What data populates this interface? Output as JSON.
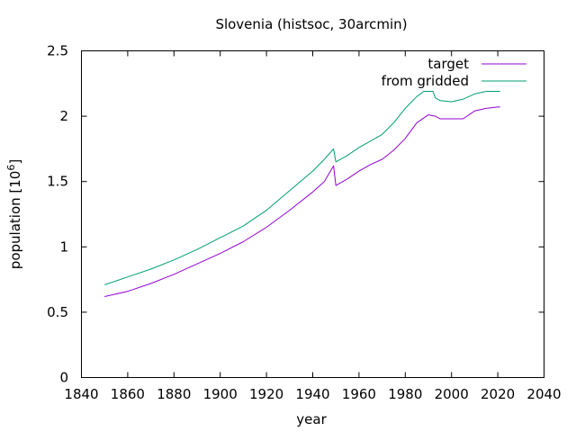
{
  "chart_data": {
    "type": "line",
    "title": "Slovenia (histsoc, 30arcmin)",
    "xlabel": "year",
    "ylabel": "population [10",
    "ylabel_sup": "6",
    "ylabel_end": "]",
    "xlim": [
      1840,
      2040
    ],
    "ylim": [
      0,
      2.5
    ],
    "xticks": [
      1840,
      1860,
      1880,
      1900,
      1920,
      1940,
      1960,
      1980,
      2000,
      2020,
      2040
    ],
    "xtick_labels": [
      "1840",
      "1860",
      "1880",
      "1900",
      "1920",
      "1940",
      "1960",
      "1980",
      "2000",
      "2020",
      "2040"
    ],
    "yticks": [
      0,
      0.5,
      1,
      1.5,
      2,
      2.5
    ],
    "ytick_labels": [
      "0",
      "0.5",
      "1",
      "1.5",
      "2",
      "2.5"
    ],
    "legend_position": "top-right",
    "series": [
      {
        "name": "target",
        "color": "#9400d3",
        "x": [
          1850,
          1860,
          1870,
          1880,
          1890,
          1900,
          1910,
          1920,
          1930,
          1940,
          1945,
          1949,
          1950,
          1955,
          1960,
          1965,
          1970,
          1975,
          1980,
          1985,
          1990,
          1993,
          1995,
          2000,
          2005,
          2010,
          2015,
          2020,
          2021
        ],
        "y": [
          0.62,
          0.66,
          0.72,
          0.79,
          0.87,
          0.95,
          1.04,
          1.15,
          1.28,
          1.42,
          1.5,
          1.62,
          1.47,
          1.52,
          1.58,
          1.63,
          1.67,
          1.74,
          1.83,
          1.95,
          2.01,
          2.0,
          1.98,
          1.98,
          1.98,
          2.04,
          2.06,
          2.07,
          2.07
        ]
      },
      {
        "name": "from gridded",
        "color": "#009e73",
        "x": [
          1850,
          1855,
          1860,
          1870,
          1880,
          1890,
          1900,
          1910,
          1920,
          1930,
          1940,
          1945,
          1949,
          1950,
          1955,
          1960,
          1965,
          1970,
          1975,
          1980,
          1985,
          1988,
          1990,
          1992,
          1993,
          1995,
          2000,
          2005,
          2010,
          2015,
          2020,
          2021
        ],
        "y": [
          0.71,
          0.74,
          0.77,
          0.83,
          0.9,
          0.98,
          1.07,
          1.16,
          1.28,
          1.43,
          1.58,
          1.67,
          1.75,
          1.65,
          1.7,
          1.76,
          1.81,
          1.86,
          1.95,
          2.06,
          2.15,
          2.19,
          2.19,
          2.19,
          2.14,
          2.12,
          2.11,
          2.13,
          2.17,
          2.19,
          2.19,
          2.19
        ]
      }
    ]
  }
}
